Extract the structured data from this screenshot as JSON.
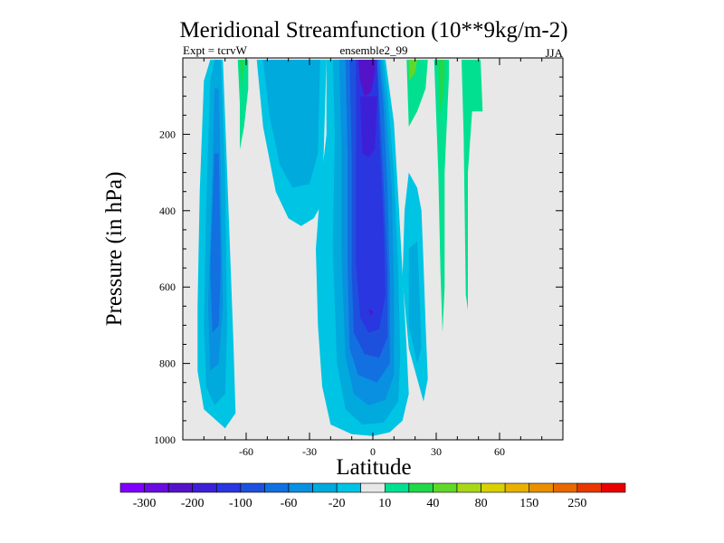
{
  "chart_data": {
    "type": "contour",
    "title": "Meridional Streamfunction (10**9kg/m-2)",
    "subtitle_left": "Expt = tcrvW",
    "subtitle_center": "ensemble2_99",
    "subtitle_right": "JJA",
    "xlabel": "Latitude",
    "ylabel": "Pressure (in hPa)",
    "xlim": [
      -90,
      90
    ],
    "ylim": [
      1000,
      0
    ],
    "xticks": [
      {
        "value": -60,
        "label": "-60"
      },
      {
        "value": -30,
        "label": "-30"
      },
      {
        "value": 0,
        "label": "0"
      },
      {
        "value": 30,
        "label": "30"
      },
      {
        "value": 60,
        "label": "60"
      }
    ],
    "yticks": [
      {
        "value": 200,
        "label": "200"
      },
      {
        "value": 400,
        "label": "400"
      },
      {
        "value": 600,
        "label": "600"
      },
      {
        "value": 800,
        "label": "800"
      },
      {
        "value": 1000,
        "label": "1000"
      }
    ],
    "colorbar": {
      "colors": [
        "#7f00ff",
        "#6a0be0",
        "#5413c8",
        "#3c20d8",
        "#2a36e0",
        "#1e50de",
        "#1270e0",
        "#0a90e0",
        "#00aadd",
        "#00c4e4",
        "#e8e8e8",
        "#00e090",
        "#20d848",
        "#60d828",
        "#a8d818",
        "#d8d000",
        "#e8b000",
        "#e89000",
        "#e86800",
        "#e83800",
        "#e80000"
      ],
      "labels": [
        {
          "index": 1,
          "label": "-300"
        },
        {
          "index": 3,
          "label": "-200"
        },
        {
          "index": 5,
          "label": "-100"
        },
        {
          "index": 7,
          "label": "-60"
        },
        {
          "index": 9,
          "label": "-20"
        },
        {
          "index": 11,
          "label": "10"
        },
        {
          "index": 13,
          "label": "40"
        },
        {
          "index": 15,
          "label": "80"
        },
        {
          "index": 17,
          "label": "150"
        },
        {
          "index": 19,
          "label": "250"
        }
      ]
    },
    "regions": [
      {
        "name": "sh-cell-edge",
        "color": "#00c4e4",
        "points": [
          [
            -83,
            650
          ],
          [
            -82,
            350
          ],
          [
            -80,
            60
          ],
          [
            -77,
            5
          ],
          [
            -71,
            5
          ],
          [
            -69,
            300
          ],
          [
            -66,
            750
          ],
          [
            -65,
            930
          ],
          [
            -70,
            970
          ],
          [
            -80,
            920
          ],
          [
            -83,
            820
          ]
        ]
      },
      {
        "name": "sh-cell-level1",
        "color": "#00aadd",
        "points": [
          [
            -80,
            700
          ],
          [
            -79,
            400
          ],
          [
            -77,
            60
          ],
          [
            -75,
            5
          ],
          [
            -72,
            5
          ],
          [
            -70,
            300
          ],
          [
            -69,
            700
          ],
          [
            -70,
            880
          ],
          [
            -75,
            910
          ],
          [
            -79,
            860
          ]
        ]
      },
      {
        "name": "sh-cell-level2",
        "color": "#0a90e0",
        "points": [
          [
            -78,
            650
          ],
          [
            -76,
            300
          ],
          [
            -75,
            80
          ],
          [
            -73,
            80
          ],
          [
            -72,
            300
          ],
          [
            -71,
            650
          ],
          [
            -73,
            800
          ],
          [
            -77,
            820
          ]
        ]
      },
      {
        "name": "sh-cell-level3",
        "color": "#1270e0",
        "points": [
          [
            -77,
            550
          ],
          [
            -75,
            250
          ],
          [
            -73,
            250
          ],
          [
            -72,
            550
          ],
          [
            -73,
            700
          ],
          [
            -76,
            720
          ]
        ]
      },
      {
        "name": "sh-upper-lobe",
        "color": "#00c4e4",
        "points": [
          [
            -55,
            5
          ],
          [
            -52,
            180
          ],
          [
            -46,
            350
          ],
          [
            -40,
            420
          ],
          [
            -34,
            440
          ],
          [
            -28,
            420
          ],
          [
            -24,
            380
          ],
          [
            -23,
            200
          ],
          [
            -22,
            5
          ]
        ]
      },
      {
        "name": "sh-upper-level1",
        "color": "#00aadd",
        "points": [
          [
            -52,
            5
          ],
          [
            -49,
            150
          ],
          [
            -44,
            280
          ],
          [
            -38,
            340
          ],
          [
            -30,
            330
          ],
          [
            -26,
            250
          ],
          [
            -25,
            5
          ]
        ]
      },
      {
        "name": "central-edge",
        "color": "#00c4e4",
        "points": [
          [
            -22,
            5
          ],
          [
            -22,
            200
          ],
          [
            -25,
            350
          ],
          [
            -27,
            500
          ],
          [
            -26,
            700
          ],
          [
            -24,
            860
          ],
          [
            -20,
            960
          ],
          [
            -10,
            985
          ],
          [
            0,
            990
          ],
          [
            8,
            980
          ],
          [
            14,
            950
          ],
          [
            17,
            880
          ],
          [
            16,
            760
          ],
          [
            14,
            560
          ],
          [
            12,
            360
          ],
          [
            10,
            170
          ],
          [
            6,
            5
          ]
        ]
      },
      {
        "name": "central-level1",
        "color": "#00aadd",
        "points": [
          [
            -19,
            5
          ],
          [
            -18,
            200
          ],
          [
            -19,
            500
          ],
          [
            -17,
            800
          ],
          [
            -13,
            920
          ],
          [
            -5,
            960
          ],
          [
            5,
            955
          ],
          [
            12,
            900
          ],
          [
            13,
            780
          ],
          [
            12,
            560
          ],
          [
            10,
            300
          ],
          [
            7,
            100
          ],
          [
            5,
            5
          ]
        ]
      },
      {
        "name": "central-level2",
        "color": "#0a90e0",
        "points": [
          [
            -16,
            5
          ],
          [
            -15,
            200
          ],
          [
            -15,
            500
          ],
          [
            -13,
            780
          ],
          [
            -9,
            880
          ],
          [
            -2,
            910
          ],
          [
            6,
            895
          ],
          [
            10,
            830
          ],
          [
            10,
            600
          ],
          [
            9,
            350
          ],
          [
            6,
            120
          ],
          [
            4,
            5
          ]
        ]
      },
      {
        "name": "central-level3",
        "color": "#1270e0",
        "points": [
          [
            -13,
            5
          ],
          [
            -12,
            250
          ],
          [
            -12,
            550
          ],
          [
            -11,
            760
          ],
          [
            -7,
            830
          ],
          [
            2,
            850
          ],
          [
            8,
            800
          ],
          [
            8,
            580
          ],
          [
            7,
            350
          ],
          [
            5,
            120
          ],
          [
            3,
            5
          ]
        ]
      },
      {
        "name": "central-level4",
        "color": "#1e50de",
        "points": [
          [
            -11,
            5
          ],
          [
            -10,
            260
          ],
          [
            -10,
            560
          ],
          [
            -9,
            720
          ],
          [
            -4,
            775
          ],
          [
            3,
            785
          ],
          [
            7,
            730
          ],
          [
            7,
            560
          ],
          [
            5,
            320
          ],
          [
            3,
            100
          ],
          [
            2,
            5
          ]
        ]
      },
      {
        "name": "central-core",
        "color": "#2a36e0",
        "points": [
          [
            -8,
            5
          ],
          [
            -8,
            280
          ],
          [
            -8,
            540
          ],
          [
            -6,
            680
          ],
          [
            -2,
            720
          ],
          [
            3,
            710
          ],
          [
            6,
            620
          ],
          [
            5,
            420
          ],
          [
            3,
            200
          ],
          [
            2,
            5
          ]
        ]
      },
      {
        "name": "central-top-core",
        "color": "#5413c8",
        "points": [
          [
            -7,
            5
          ],
          [
            -6,
            60
          ],
          [
            -4,
            100
          ],
          [
            -1,
            90
          ],
          [
            1,
            40
          ],
          [
            1,
            5
          ]
        ]
      },
      {
        "name": "central-top-inner",
        "color": "#3c20d8",
        "points": [
          [
            -6,
            100
          ],
          [
            -5,
            250
          ],
          [
            -2,
            260
          ],
          [
            1,
            240
          ],
          [
            2,
            100
          ]
        ]
      },
      {
        "name": "core-dot",
        "color": "#5413c8",
        "points": [
          [
            -2,
            658
          ],
          [
            -1,
            676
          ],
          [
            0,
            664
          ]
        ]
      },
      {
        "name": "nh-lobe-edge",
        "color": "#00c4e4",
        "points": [
          [
            15,
            400
          ],
          [
            14,
            580
          ],
          [
            17,
            760
          ],
          [
            21,
            840
          ],
          [
            24,
            900
          ],
          [
            26,
            840
          ],
          [
            25,
            700
          ],
          [
            24,
            540
          ],
          [
            23,
            400
          ],
          [
            21,
            340
          ],
          [
            17,
            300
          ]
        ]
      },
      {
        "name": "nh-lobe-level1",
        "color": "#00aadd",
        "points": [
          [
            17,
            500
          ],
          [
            17,
            700
          ],
          [
            21,
            800
          ],
          [
            23,
            760
          ],
          [
            22,
            600
          ],
          [
            21,
            480
          ]
        ]
      },
      {
        "name": "green-strip-sh",
        "color": "#00e090",
        "points": [
          [
            -64,
            5
          ],
          [
            -63,
            120
          ],
          [
            -63,
            240
          ],
          [
            -61,
            180
          ],
          [
            -59,
            80
          ],
          [
            -59,
            5
          ]
        ]
      },
      {
        "name": "green-sh-inner",
        "color": "#20d848",
        "points": [
          [
            -63,
            5
          ],
          [
            -62,
            80
          ],
          [
            -61,
            5
          ]
        ]
      },
      {
        "name": "green-nh-1",
        "color": "#00e090",
        "points": [
          [
            16,
            5
          ],
          [
            17,
            180
          ],
          [
            21,
            140
          ],
          [
            25,
            80
          ],
          [
            26,
            5
          ]
        ]
      },
      {
        "name": "green-nh-1-inner",
        "color": "#60d828",
        "points": [
          [
            17,
            5
          ],
          [
            17,
            60
          ],
          [
            20,
            40
          ],
          [
            21,
            5
          ]
        ]
      },
      {
        "name": "green-nh-2",
        "color": "#00e090",
        "points": [
          [
            29,
            5
          ],
          [
            31,
            300
          ],
          [
            32,
            560
          ],
          [
            33,
            720
          ],
          [
            34,
            600
          ],
          [
            34,
            300
          ],
          [
            36,
            50
          ],
          [
            36,
            5
          ]
        ]
      },
      {
        "name": "green-nh-2-inner",
        "color": "#20d848",
        "points": [
          [
            31,
            5
          ],
          [
            32,
            150
          ],
          [
            34,
            50
          ],
          [
            34,
            5
          ]
        ]
      },
      {
        "name": "green-nh-3",
        "color": "#00e090",
        "points": [
          [
            42,
            5
          ],
          [
            43,
            200
          ],
          [
            44,
            620
          ],
          [
            45,
            660
          ],
          [
            45,
            300
          ],
          [
            47,
            140
          ],
          [
            52,
            140
          ],
          [
            51,
            5
          ]
        ]
      },
      {
        "name": "green-nh-4",
        "color": "#00e090",
        "points": [
          [
            46,
            140
          ],
          [
            47,
            80
          ],
          [
            52,
            120
          ]
        ]
      }
    ]
  }
}
